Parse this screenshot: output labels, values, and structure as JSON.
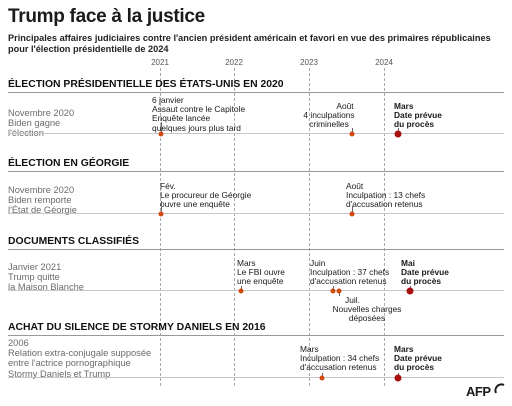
{
  "title": "Trump face à la justice",
  "subtitle": "Principales affaires judiciaires contre l'ancien président américain et favori en vue des primaires républicaines pour l'élection présidentielle de 2024",
  "years": [
    "2021",
    "2022",
    "2023",
    "2024"
  ],
  "sections": [
    {
      "title": "ÉLECTION PRÉSIDENTIELLE DES ÉTATS-UNIS EN 2020",
      "start": "Novembre 2020\nBiden gagne\nl'élection",
      "events": [
        {
          "label": "6 janvier",
          "text": "Assaut contre le Capitole\nEnquête lancée\nquelques jours plus tard"
        },
        {
          "label": "Août",
          "text": "4 inculpations\ncriminelles"
        },
        {
          "label": "Mars",
          "text": "Date prévue\ndu procès"
        }
      ]
    },
    {
      "title": "ÉLECTION EN GÉORGIE",
      "start": "Novembre 2020\nBiden remporte\nl'État de Géorgie",
      "events": [
        {
          "label": "Fév.",
          "text": "Le procureur de Géorgie\nouvre une enquête"
        },
        {
          "label": "Août",
          "text": "Inculpation : 13 chefs\nd'accusation retenus"
        }
      ]
    },
    {
      "title": "DOCUMENTS CLASSIFIÉS",
      "start": "Janvier 2021\nTrump quitte\nla Maison Blanche",
      "events": [
        {
          "label": "Mars",
          "text": "Le FBI ouvre\nune enquête"
        },
        {
          "label": "Juin",
          "text": "Inculpation : 37 chefs\nd'accusation retenus"
        },
        {
          "label": "Juil.",
          "text": "Nouvelles charges\ndéposées"
        },
        {
          "label": "Mai",
          "text": "Date prévue\ndu procès"
        }
      ]
    },
    {
      "title": "ACHAT DU SILENCE DE STORMY DANIELS EN 2016",
      "start": "2006\nRelation extra-conjugale supposée\nentre l'actrice pornographique\nStormy Daniels et Trump",
      "events": [
        {
          "label": "Mars",
          "text": "Inculpation : 34 chefs\nd'accusation retenus"
        },
        {
          "label": "Mars",
          "text": "Date prévue\ndu procès"
        }
      ]
    }
  ],
  "logo": "AFP",
  "colors": {
    "dot": "#d04a0d",
    "trial_dot": "#a61010",
    "accent": "#a61010"
  }
}
